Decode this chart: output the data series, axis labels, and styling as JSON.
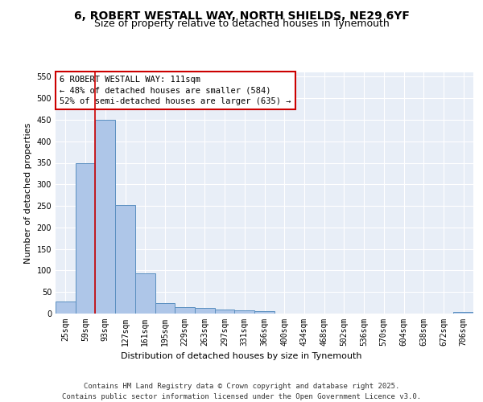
{
  "title_line1": "6, ROBERT WESTALL WAY, NORTH SHIELDS, NE29 6YF",
  "title_line2": "Size of property relative to detached houses in Tynemouth",
  "xlabel": "Distribution of detached houses by size in Tynemouth",
  "ylabel": "Number of detached properties",
  "categories": [
    "25sqm",
    "59sqm",
    "93sqm",
    "127sqm",
    "161sqm",
    "195sqm",
    "229sqm",
    "263sqm",
    "297sqm",
    "331sqm",
    "366sqm",
    "400sqm",
    "434sqm",
    "468sqm",
    "502sqm",
    "536sqm",
    "570sqm",
    "604sqm",
    "638sqm",
    "672sqm",
    "706sqm"
  ],
  "values": [
    28,
    350,
    450,
    252,
    93,
    25,
    15,
    13,
    10,
    7,
    6,
    0,
    0,
    0,
    0,
    0,
    0,
    0,
    0,
    0,
    4
  ],
  "bar_color": "#aec6e8",
  "bar_edge_color": "#5a8fc0",
  "vline_color": "#cc0000",
  "annotation_text": "6 ROBERT WESTALL WAY: 111sqm\n← 48% of detached houses are smaller (584)\n52% of semi-detached houses are larger (635) →",
  "annotation_box_color": "#ffffff",
  "annotation_box_edge": "#cc0000",
  "ylim": [
    0,
    560
  ],
  "yticks": [
    0,
    50,
    100,
    150,
    200,
    250,
    300,
    350,
    400,
    450,
    500,
    550
  ],
  "background_color": "#e8eef7",
  "footer_text": "Contains HM Land Registry data © Crown copyright and database right 2025.\nContains public sector information licensed under the Open Government Licence v3.0.",
  "title_fontsize": 10,
  "subtitle_fontsize": 9,
  "axis_label_fontsize": 8,
  "tick_fontsize": 7,
  "annotation_fontsize": 7.5,
  "footer_fontsize": 6.5
}
